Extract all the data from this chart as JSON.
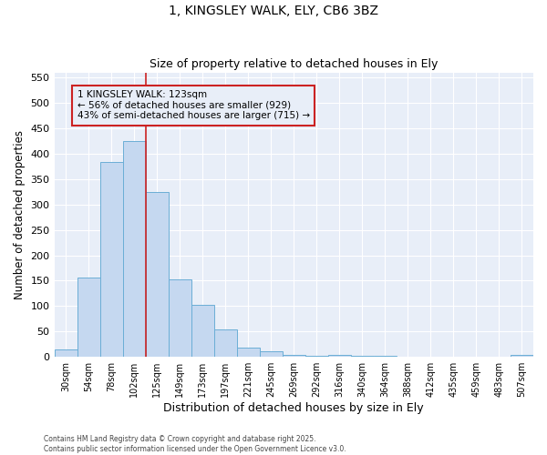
{
  "title1": "1, KINGSLEY WALK, ELY, CB6 3BZ",
  "title2": "Size of property relative to detached houses in Ely",
  "xlabel": "Distribution of detached houses by size in Ely",
  "ylabel": "Number of detached properties",
  "bar_labels": [
    "30sqm",
    "54sqm",
    "78sqm",
    "102sqm",
    "125sqm",
    "149sqm",
    "173sqm",
    "197sqm",
    "221sqm",
    "245sqm",
    "269sqm",
    "292sqm",
    "316sqm",
    "340sqm",
    "364sqm",
    "388sqm",
    "412sqm",
    "435sqm",
    "459sqm",
    "483sqm",
    "507sqm"
  ],
  "bar_values": [
    14,
    157,
    383,
    424,
    325,
    152,
    103,
    55,
    19,
    11,
    4,
    2,
    4,
    2,
    2,
    1,
    1,
    1,
    1,
    0,
    4
  ],
  "bar_color": "#c5d8f0",
  "bar_edgecolor": "#6baed6",
  "property_label": "1 KINGSLEY WALK: 123sqm",
  "annotation_line1": "← 56% of detached houses are smaller (929)",
  "annotation_line2": "43% of semi-detached houses are larger (715) →",
  "vline_color": "#cc2222",
  "vline_index": 4,
  "annotation_box_color": "#cc2222",
  "annotation_text_color": "#000000",
  "background_color": "#ffffff",
  "plot_bg_color": "#e8eef8",
  "grid_color": "#ffffff",
  "footer1": "Contains HM Land Registry data © Crown copyright and database right 2025.",
  "footer2": "Contains public sector information licensed under the Open Government Licence v3.0.",
  "ylim": [
    0,
    560
  ],
  "yticks": [
    0,
    50,
    100,
    150,
    200,
    250,
    300,
    350,
    400,
    450,
    500,
    550
  ]
}
